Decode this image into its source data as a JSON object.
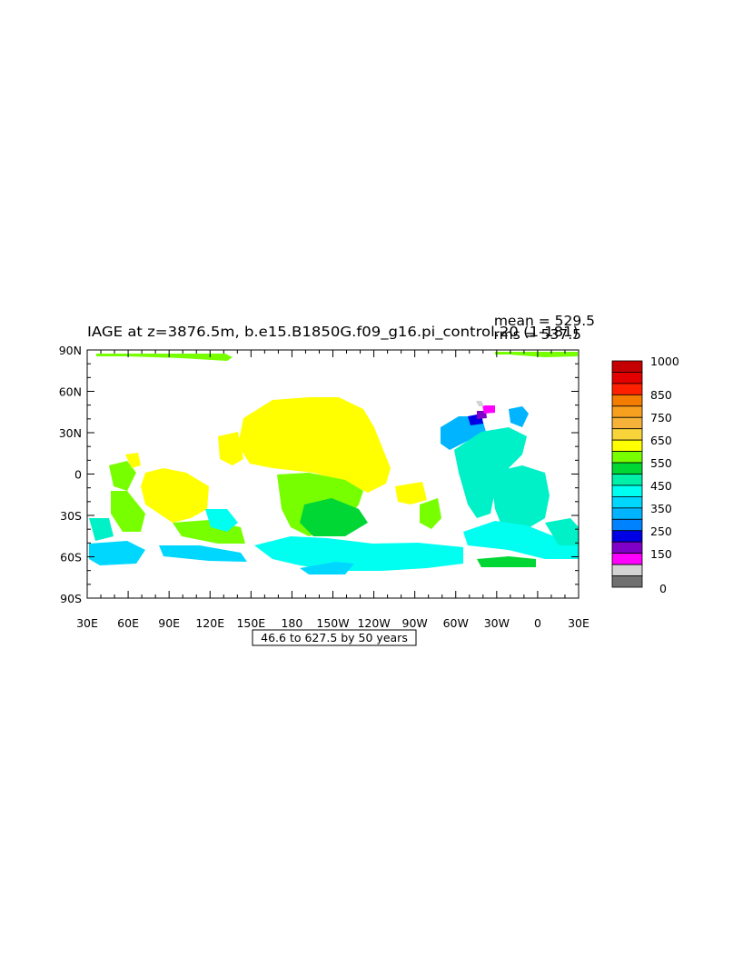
{
  "title": "IAGE at z=3876.5m, b.e15.B1850G.f09_g16.pi_control.20 (1-181)",
  "stats": {
    "mean": "mean = 529.5",
    "rms": "rms = 537.5"
  },
  "map": {
    "projection": "cylindrical equidistant",
    "lon_range": [
      30,
      390
    ],
    "lat_range": [
      -90,
      90
    ],
    "lon_ticks": [
      "30E",
      "60E",
      "90E",
      "120E",
      "150E",
      "180",
      "150W",
      "120W",
      "90W",
      "60W",
      "30W",
      "0",
      "30E"
    ],
    "lat_ticks": [
      "90N",
      "60N",
      "30N",
      "0",
      "30S",
      "60S",
      "90S"
    ],
    "contour_note": "46.6 to 627.5 by 50 years"
  },
  "colorbar": {
    "labels": [
      "1000",
      "850",
      "750",
      "650",
      "550",
      "450",
      "350",
      "250",
      "150",
      "0"
    ],
    "colors": [
      "#C40000",
      "#E20000",
      "#FF2000",
      "#F47C00",
      "#F7A020",
      "#F7B23A",
      "#F8D33A",
      "#FFFF00",
      "#77FF00",
      "#00D734",
      "#00F0A8",
      "#00FFF0",
      "#00D7FF",
      "#00B4FF",
      "#0082FF",
      "#0000E6",
      "#8000C8",
      "#FF00FF",
      "#D3D3D3",
      "#707070"
    ]
  },
  "regions": [
    {
      "name": "yellow",
      "color": "#FFFF00"
    },
    {
      "name": "green",
      "color": "#77FF00"
    },
    {
      "name": "green2",
      "color": "#00D734"
    },
    {
      "name": "cyan",
      "color": "#00FFF0"
    },
    {
      "name": "cyan2",
      "color": "#00F0C8"
    },
    {
      "name": "blue",
      "color": "#00D7FF"
    },
    {
      "name": "blue2",
      "color": "#00B4FF"
    }
  ]
}
